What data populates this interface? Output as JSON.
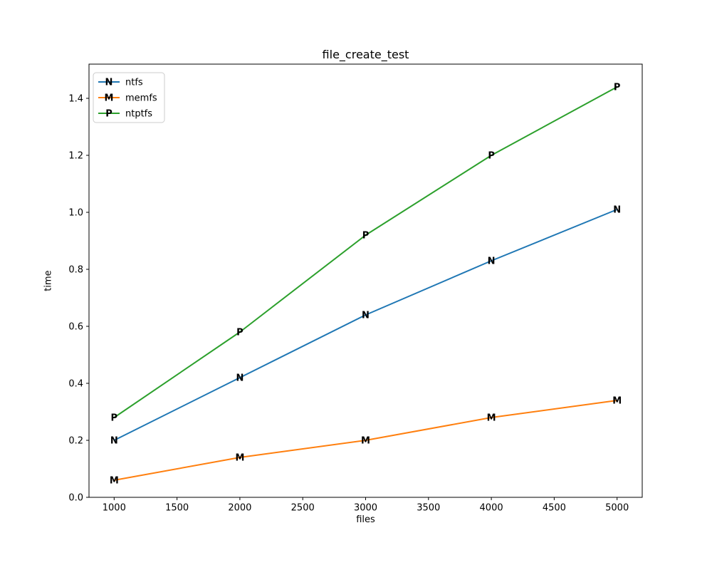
{
  "figure": {
    "background": "#ffffff",
    "spine_color": "#000000"
  },
  "chart_data": {
    "type": "line",
    "title": "file_create_test",
    "xlabel": "files",
    "ylabel": "time",
    "x": [
      1000,
      2000,
      3000,
      4000,
      5000
    ],
    "series": [
      {
        "name": "ntfs",
        "color": "#1f77b4",
        "marker": "N",
        "values": [
          0.2,
          0.42,
          0.64,
          0.83,
          1.01
        ]
      },
      {
        "name": "memfs",
        "color": "#ff7f0e",
        "marker": "M",
        "values": [
          0.06,
          0.14,
          0.2,
          0.28,
          0.34
        ]
      },
      {
        "name": "ntptfs",
        "color": "#2ca02c",
        "marker": "P",
        "values": [
          0.28,
          0.58,
          0.92,
          1.2,
          1.44
        ]
      }
    ],
    "xtick_values": [
      1000,
      1500,
      2000,
      2500,
      3000,
      3500,
      4000,
      4500,
      5000
    ],
    "xtick_labels": [
      "1000",
      "1500",
      "2000",
      "2500",
      "3000",
      "3500",
      "4000",
      "4500",
      "5000"
    ],
    "ytick_values": [
      0.0,
      0.2,
      0.4,
      0.6,
      0.8,
      1.0,
      1.2,
      1.4
    ],
    "ytick_labels": [
      "0.0",
      "0.2",
      "0.4",
      "0.6",
      "0.8",
      "1.0",
      "1.2",
      "1.4"
    ],
    "xlim": [
      800,
      5200
    ],
    "ylim": [
      0,
      1.52
    ],
    "grid": false,
    "legend_position": "upper-left",
    "legend_border_color": "#cccccc"
  }
}
